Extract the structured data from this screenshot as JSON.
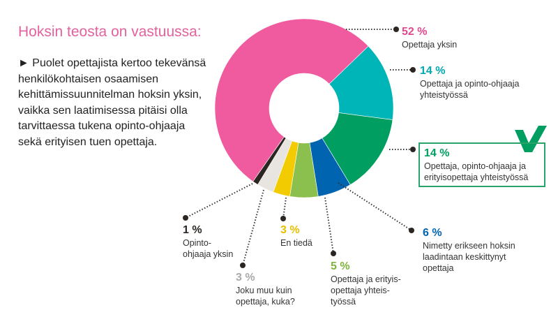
{
  "title": "Hoksin teosta on vastuussa:",
  "intro": "► Puolet opettajista kertoo tekevänsä henkilökohtaisen osaamisen kehittämissuunnitelman hoksin yksin, vaikka sen laatimisessa pitäisi olla tarvittaessa tukena opinto-ohjaaja sekä erityisen tuen opettaja.",
  "chart_data": {
    "type": "pie",
    "donut": true,
    "slices": [
      {
        "label": "Opettaja ja opinto-ohjaaja yhteistyössä",
        "value": 14,
        "pct": "14 %",
        "color": "#00b5b8"
      },
      {
        "label": "Opettaja, opinto-ohjaaja ja erityisopettaja yhteistyössä",
        "value": 14,
        "pct": "14 %",
        "color": "#009e60",
        "highlight": "check-icon"
      },
      {
        "label": "Nimetty erikseen hoksin laadintaan keskittynyt opettaja",
        "value": 6,
        "pct": "6 %",
        "color": "#0064b0"
      },
      {
        "label": "Opettaja ja erityis-opettaja yhteis-työssä",
        "value": 5,
        "pct": "5 %",
        "color": "#8cc04e"
      },
      {
        "label": "En tiedä",
        "value": 3,
        "pct": "3 %",
        "color": "#f2cc00"
      },
      {
        "label": "Joku muu kuin opettaja, kuka?",
        "value": 3,
        "pct": "3 %",
        "color": "#e8e4e0"
      },
      {
        "label": "Opinto-ohjaaja yksin",
        "value": 1,
        "pct": "1 %",
        "color": "#2b2622"
      },
      {
        "label": "Opettaja yksin",
        "value": 52,
        "pct": "52 %",
        "color": "#f05a9e"
      }
    ]
  }
}
